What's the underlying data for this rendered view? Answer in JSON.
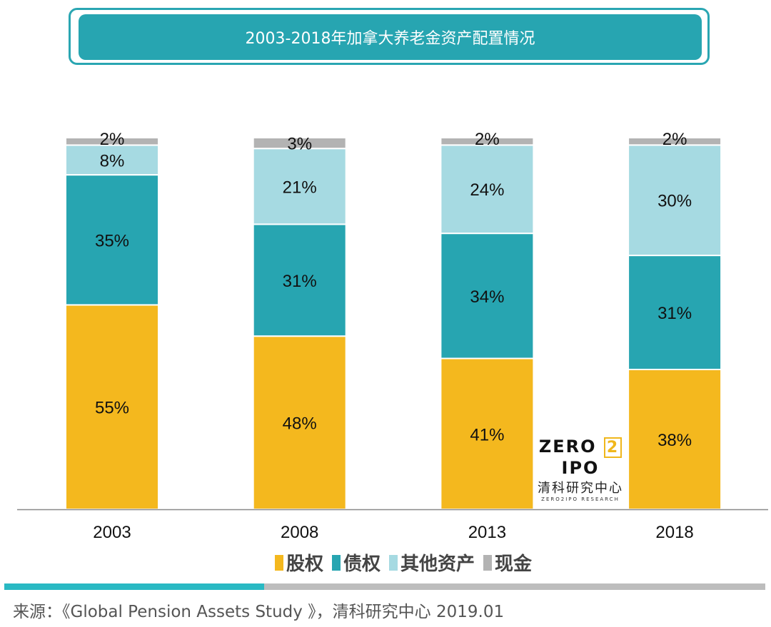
{
  "title": "2003-2018年加拿大养老金资产配置情况",
  "chart_data": {
    "type": "stacked-bar",
    "title": "2003-2018年加拿大养老金资产配置情况",
    "categories": [
      "2003",
      "2008",
      "2013",
      "2018"
    ],
    "series": [
      {
        "name": "股权",
        "color": "#f4b81e",
        "values": [
          55,
          48,
          41,
          38
        ]
      },
      {
        "name": "债权",
        "color": "#27a5b1",
        "values": [
          35,
          31,
          34,
          31
        ]
      },
      {
        "name": "其他资产",
        "color": "#a6dae2",
        "values": [
          8,
          21,
          24,
          30
        ]
      },
      {
        "name": "现金",
        "color": "#b3b3b3",
        "values": [
          2,
          3,
          2,
          2
        ]
      }
    ],
    "value_suffix": "%",
    "legend_position": "bottom",
    "grid": false
  },
  "watermark": {
    "brand_left": "ZERO",
    "brand_num": "2",
    "brand_right": "IPO",
    "cn": "清科研究中心",
    "sub": "ZERO2IPO RESEARCH"
  },
  "source": "来源：《Global Pension Assets Study 》，清科研究中心 2019.01"
}
